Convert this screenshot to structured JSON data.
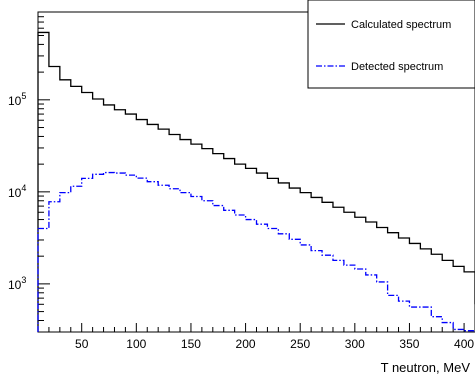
{
  "chart_data": {
    "type": "line",
    "title": "",
    "xlabel": "T neutron, MeV",
    "ylabel": "",
    "yscale": "log",
    "xlim": [
      10,
      410
    ],
    "ylim": [
      300,
      900000
    ],
    "grid": false,
    "legend_placement": "top-right",
    "bin_width": 10,
    "bin_edges": [
      10,
      20,
      30,
      40,
      50,
      60,
      70,
      80,
      90,
      100,
      110,
      120,
      130,
      140,
      150,
      160,
      170,
      180,
      190,
      200,
      210,
      220,
      230,
      240,
      250,
      260,
      270,
      280,
      290,
      300,
      310,
      320,
      330,
      340,
      350,
      360,
      370,
      380,
      390,
      400,
      410
    ],
    "x_ticks": [
      {
        "value": 50,
        "label": "50"
      },
      {
        "value": 100,
        "label": "100"
      },
      {
        "value": 150,
        "label": "150"
      },
      {
        "value": 200,
        "label": "200"
      },
      {
        "value": 250,
        "label": "250"
      },
      {
        "value": 300,
        "label": "300"
      },
      {
        "value": 350,
        "label": "350"
      },
      {
        "value": 400,
        "label": "400"
      }
    ],
    "y_ticks": [
      {
        "value": 1000,
        "base": "10",
        "exp": "3"
      },
      {
        "value": 10000,
        "base": "10",
        "exp": "4"
      },
      {
        "value": 100000,
        "base": "10",
        "exp": "5"
      }
    ],
    "series": [
      {
        "name": "Calculated spectrum",
        "color": "#000000",
        "style": "solid",
        "values": [
          540000,
          230000,
          165000,
          140000,
          120000,
          102000,
          88000,
          78000,
          70000,
          61000,
          54000,
          48000,
          42000,
          37000,
          33000,
          29500,
          26000,
          23000,
          20000,
          18000,
          16000,
          14000,
          12500,
          11000,
          9800,
          8700,
          7700,
          6800,
          6000,
          5300,
          4700,
          4100,
          3600,
          3150,
          2750,
          2400,
          2100,
          1800,
          1550,
          1350,
          600
        ]
      },
      {
        "name": "Detected spectrum",
        "color": "#0000ff",
        "style": "dashdot",
        "values": [
          4000,
          7800,
          9800,
          11500,
          14000,
          15500,
          16200,
          16000,
          15200,
          14100,
          12900,
          11800,
          10800,
          9800,
          8900,
          8000,
          7100,
          6300,
          5600,
          5000,
          4450,
          4000,
          3500,
          3050,
          2650,
          2300,
          2050,
          1800,
          1600,
          1450,
          1250,
          1050,
          750,
          650,
          560,
          560,
          440,
          380,
          320,
          310,
          300
        ]
      }
    ]
  }
}
